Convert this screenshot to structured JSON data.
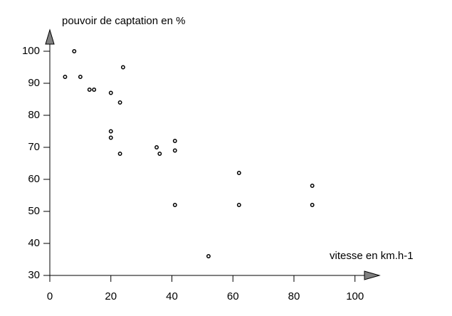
{
  "chart_data": {
    "type": "scatter",
    "ylabel": "pouvoir de captation en %",
    "xlabel": "vitesse en km.h-1",
    "x": [
      5,
      8,
      10,
      13,
      14.5,
      20,
      20,
      20,
      23,
      23,
      24,
      35,
      36,
      41,
      41,
      41,
      52,
      62,
      62,
      86,
      86
    ],
    "y": [
      92,
      100,
      92,
      88,
      88,
      87,
      75,
      73,
      84,
      68,
      95,
      70,
      68,
      72,
      69,
      52,
      36,
      62,
      52,
      58,
      52
    ],
    "color": "#000000",
    "xlim": [
      0,
      108
    ],
    "ylim": [
      30,
      106
    ],
    "xticks": [
      0,
      20,
      40,
      60,
      80,
      100
    ],
    "yticks": [
      30,
      40,
      50,
      60,
      70,
      80,
      90,
      100
    ]
  }
}
